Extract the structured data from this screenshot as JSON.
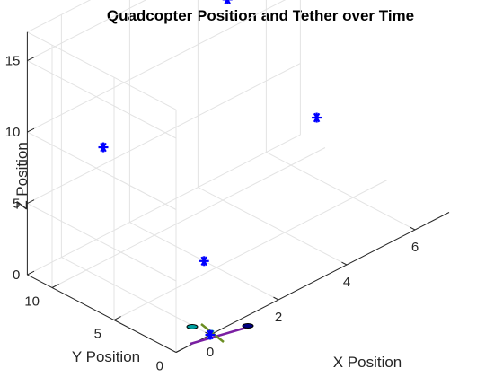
{
  "chart_data": {
    "type": "scatter3d",
    "title": "Quadcopter Position and Tether over Time",
    "xlabel": "X Position",
    "ylabel": "Y Position",
    "zlabel": "Z Position",
    "xlim": [
      -1,
      7
    ],
    "ylim": [
      0,
      12
    ],
    "zlim": [
      0,
      17
    ],
    "xticks": [
      "0",
      "2",
      "4",
      "6"
    ],
    "yticks": [
      "0",
      "5",
      "10"
    ],
    "zticks": [
      "0",
      "5",
      "10",
      "15"
    ],
    "grid": true,
    "view": "matlab-3d-default",
    "series": [
      {
        "marker": "asterisk",
        "color": "#0000ff",
        "points": [
          {
            "x": 0,
            "y": 0,
            "z": 0
          },
          {
            "x": 2,
            "y": 6,
            "z": 0
          },
          {
            "x": 0.5,
            "y": 10,
            "z": 8
          },
          {
            "x": 5.3,
            "y": 6,
            "z": 6
          },
          {
            "x": 4.5,
            "y": 11,
            "z": 13
          }
        ]
      }
    ],
    "quadcopter": {
      "position": {
        "x": 0,
        "y": 0,
        "z": 0
      },
      "arm_colors": [
        "#7a1fa2",
        "#6b8e23"
      ],
      "rotor_colors": [
        "#00a0a0",
        "#000080"
      ]
    }
  }
}
